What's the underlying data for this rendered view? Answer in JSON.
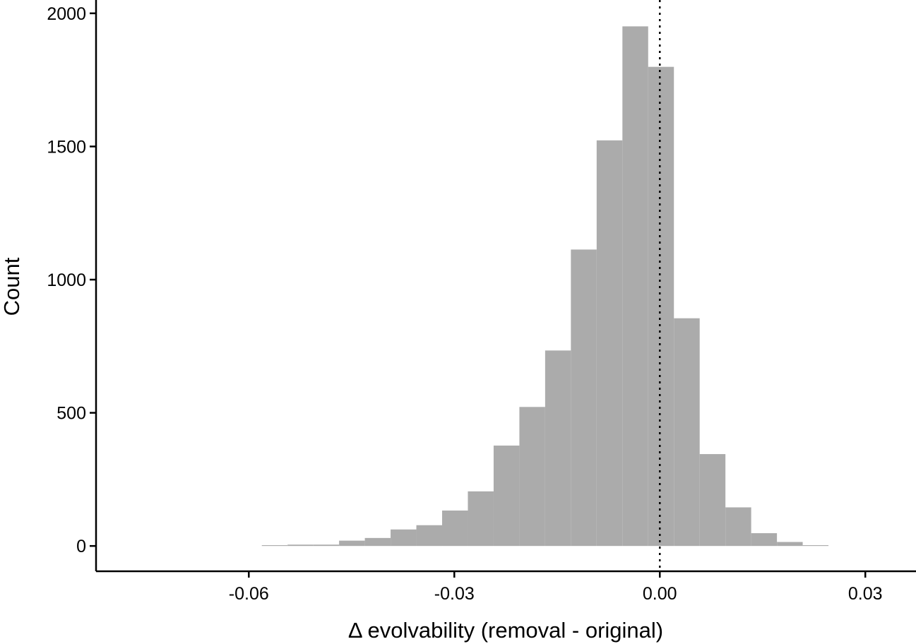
{
  "chart_data": {
    "type": "bar",
    "subtype": "histogram",
    "title": "",
    "xlabel": "Δ evolvability (removal - original)",
    "ylabel": "Count",
    "xlim": [
      -0.0823,
      0.0374
    ],
    "ylim": [
      -95,
      2050
    ],
    "x_ticks": [
      -0.06,
      -0.03,
      0.0,
      0.03
    ],
    "x_tick_labels": [
      "-0.06",
      "-0.03",
      "0.00",
      "0.03"
    ],
    "y_ticks": [
      0,
      500,
      1000,
      1500,
      2000
    ],
    "y_tick_labels": [
      "0",
      "500",
      "1000",
      "1500",
      "2000"
    ],
    "bin_width": 0.00376,
    "bin_left_edges": [
      -0.0581,
      -0.05434,
      -0.05058,
      -0.04682,
      -0.04306,
      -0.0393,
      -0.03554,
      -0.03178,
      -0.02802,
      -0.02426,
      -0.0205,
      -0.01674,
      -0.01298,
      -0.00922,
      -0.00546,
      -0.0017,
      0.00206,
      0.00582,
      0.00958,
      0.01334,
      0.0171,
      0.02086
    ],
    "values": [
      3,
      5,
      5,
      20,
      30,
      62,
      78,
      133,
      205,
      377,
      522,
      734,
      1113,
      1523,
      1951,
      1799,
      855,
      345,
      145,
      48,
      15,
      3
    ],
    "reference_line": {
      "x": 0.0,
      "style": "dotted",
      "color": "#000000"
    },
    "bar_color": "#ababab",
    "grid": false,
    "legend": "none"
  }
}
